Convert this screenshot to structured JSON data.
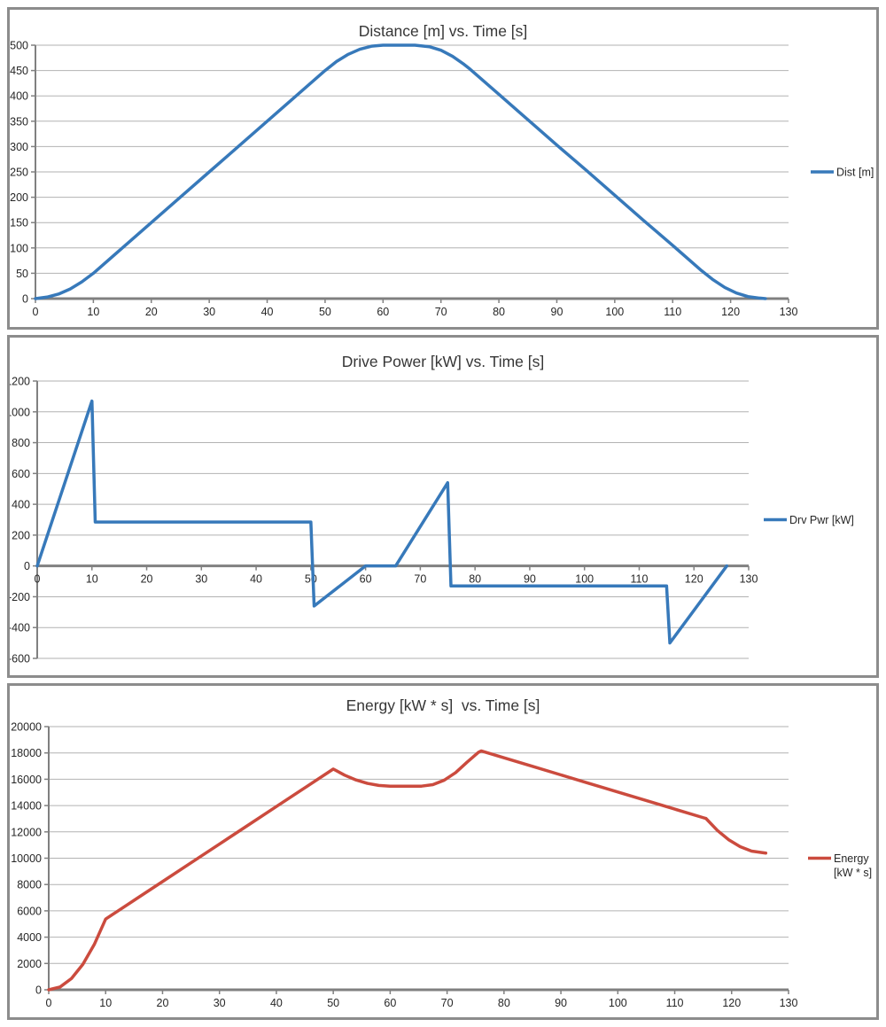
{
  "palette": {
    "grid_color": "#b2b2b2",
    "axis_color": "#808080",
    "panel_border_color": "#8c8c8c",
    "text_color": "#262626",
    "title_color": "#363636"
  },
  "chart_data": [
    {
      "type": "line",
      "title": "Distance [m] vs. Time [s]",
      "legend": [
        "Dist [m]"
      ],
      "series_name": "Dist [m]",
      "color": "#3779ba",
      "x_axis": {
        "min": 0,
        "max": 130,
        "step": 10
      },
      "y_axis": {
        "min": 0,
        "max": 500,
        "step": 50
      },
      "grid": true,
      "legend_position": "right",
      "points": [
        [
          0,
          0
        ],
        [
          2,
          3
        ],
        [
          4,
          9
        ],
        [
          6,
          19
        ],
        [
          8,
          33
        ],
        [
          10,
          50
        ],
        [
          15,
          100
        ],
        [
          20,
          150
        ],
        [
          25,
          200
        ],
        [
          30,
          250
        ],
        [
          35,
          300
        ],
        [
          40,
          350
        ],
        [
          45,
          400
        ],
        [
          50,
          450
        ],
        [
          52,
          468
        ],
        [
          54,
          482
        ],
        [
          56,
          492
        ],
        [
          58,
          498
        ],
        [
          60,
          500
        ],
        [
          65.5,
          500
        ],
        [
          68,
          497
        ],
        [
          70,
          490
        ],
        [
          72,
          478
        ],
        [
          74,
          462
        ],
        [
          75,
          453
        ],
        [
          80,
          403
        ],
        [
          85,
          353
        ],
        [
          90,
          303
        ],
        [
          95,
          254
        ],
        [
          100,
          204
        ],
        [
          105,
          154
        ],
        [
          110,
          105
        ],
        [
          115,
          55
        ],
        [
          117,
          37
        ],
        [
          119,
          22
        ],
        [
          121,
          11
        ],
        [
          123,
          4
        ],
        [
          125,
          1
        ],
        [
          126,
          0
        ]
      ]
    },
    {
      "type": "line",
      "title": "Drive Power [kW] vs. Time [s]",
      "legend": [
        "Drv Pwr [kW]"
      ],
      "series_name": "Drv Pwr [kW]",
      "color": "#3779ba",
      "x_axis": {
        "min": 0,
        "max": 130,
        "step": 10
      },
      "y_axis": {
        "min": -600,
        "max": 1200,
        "step": 200
      },
      "grid": true,
      "legend_position": "right",
      "points": [
        [
          0,
          0
        ],
        [
          10,
          1070
        ],
        [
          10.6,
          285
        ],
        [
          50,
          285
        ],
        [
          50.6,
          -260
        ],
        [
          60,
          0
        ],
        [
          65.5,
          0
        ],
        [
          75,
          540
        ],
        [
          75.6,
          -130
        ],
        [
          115,
          -130
        ],
        [
          115.6,
          -500
        ],
        [
          126,
          0
        ]
      ]
    },
    {
      "type": "line",
      "title": "Energy [kW * s]  vs. Time [s]",
      "legend": [
        "Energy",
        "[kW * s]"
      ],
      "series_name": "Energy [kW * s]",
      "color": "#cb4b3e",
      "x_axis": {
        "min": 0,
        "max": 130,
        "step": 10
      },
      "y_axis": {
        "min": 0,
        "max": 20000,
        "step": 2000
      },
      "grid": true,
      "legend_position": "right",
      "points": [
        [
          0,
          0
        ],
        [
          2,
          215
        ],
        [
          4,
          860
        ],
        [
          6,
          1935
        ],
        [
          8,
          3440
        ],
        [
          10,
          5375
        ],
        [
          15,
          6800
        ],
        [
          20,
          8225
        ],
        [
          25,
          9650
        ],
        [
          30,
          11075
        ],
        [
          35,
          12500
        ],
        [
          40,
          13925
        ],
        [
          45,
          15350
        ],
        [
          50,
          16775
        ],
        [
          52,
          16310
        ],
        [
          54,
          15945
        ],
        [
          56,
          15685
        ],
        [
          58,
          15530
        ],
        [
          60,
          15475
        ],
        [
          65.5,
          15475
        ],
        [
          67.5,
          15590
        ],
        [
          69.5,
          15930
        ],
        [
          71.5,
          16500
        ],
        [
          73.5,
          17295
        ],
        [
          75.5,
          18040
        ],
        [
          76,
          18150
        ],
        [
          80,
          17630
        ],
        [
          85,
          16980
        ],
        [
          90,
          16330
        ],
        [
          95,
          15680
        ],
        [
          100,
          15030
        ],
        [
          105,
          14380
        ],
        [
          110,
          13730
        ],
        [
          115,
          13080
        ],
        [
          115.5,
          13015
        ],
        [
          117.5,
          12110
        ],
        [
          119.5,
          11400
        ],
        [
          121.5,
          10875
        ],
        [
          123.5,
          10540
        ],
        [
          126,
          10390
        ]
      ]
    }
  ]
}
